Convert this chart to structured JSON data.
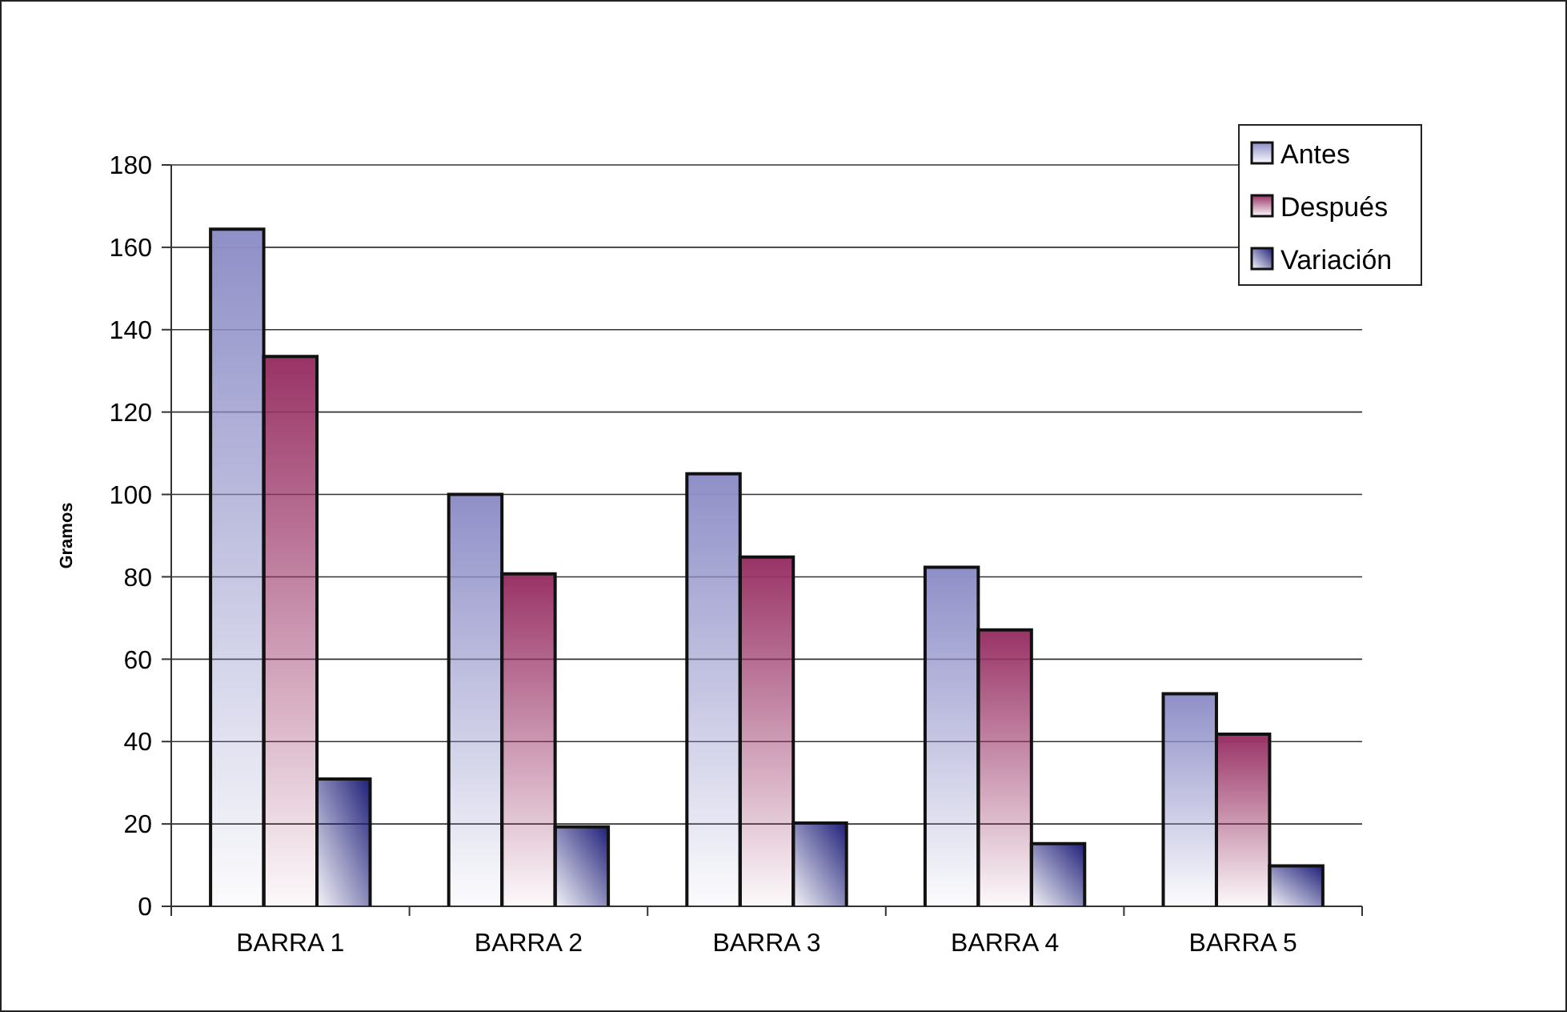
{
  "chart_data": {
    "type": "bar",
    "ylabel": "Gramos",
    "categories": [
      "BARRA 1",
      "BARRA 2",
      "BARRA 3",
      "BARRA 4",
      "BARRA 5"
    ],
    "series": [
      {
        "name": "Antes",
        "color": "#8f8fc8",
        "values": [
          164.4,
          100,
          105,
          82.3,
          51.6
        ]
      },
      {
        "name": "Después",
        "color": "#993366",
        "values": [
          133.5,
          80.7,
          84.8,
          67.1,
          41.8
        ]
      },
      {
        "name": "Variación",
        "color": "#1f1f7a",
        "values": [
          30.9,
          19.3,
          20.2,
          15.2,
          9.8
        ]
      }
    ],
    "ylim": [
      0,
      180
    ],
    "yticks": [
      0,
      20,
      40,
      60,
      80,
      100,
      120,
      140,
      160,
      180
    ],
    "grid": "y",
    "legend": "top right"
  }
}
